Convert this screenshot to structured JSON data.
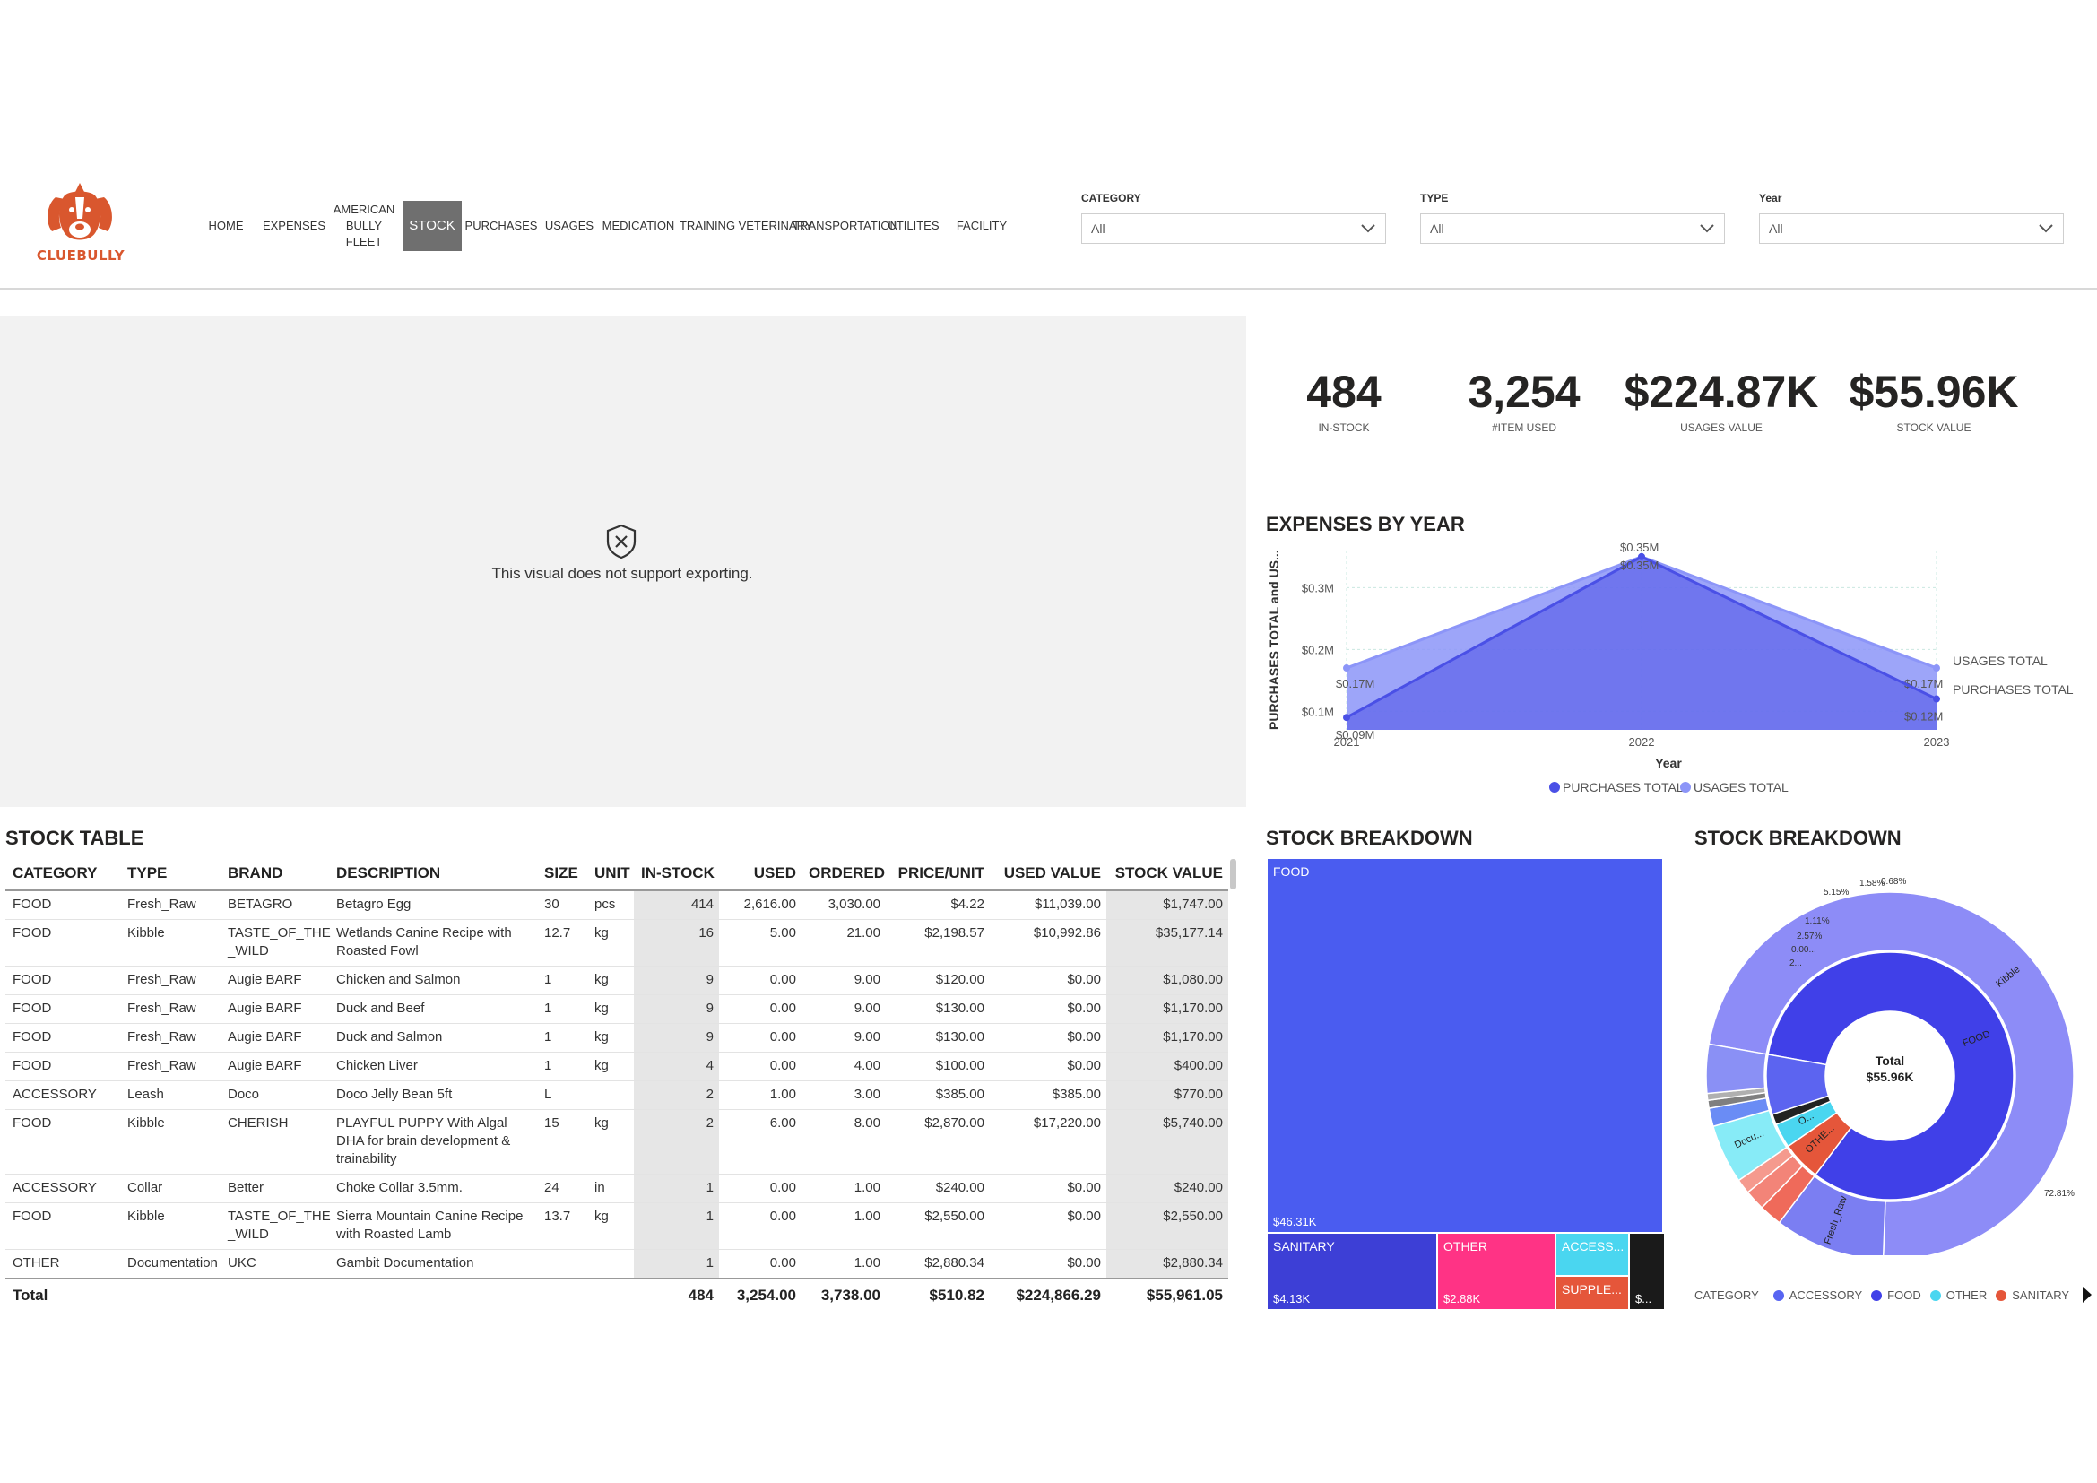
{
  "brand": {
    "logo_text": "CLUEBULLY"
  },
  "nav": [
    {
      "label": "HOME",
      "active": false
    },
    {
      "label": "EXPENSES",
      "active": false
    },
    {
      "label": "AMERICAN BULLY FLEET",
      "active": false
    },
    {
      "label": "STOCK",
      "active": true
    },
    {
      "label": "PURCHASES",
      "active": false
    },
    {
      "label": "USAGES",
      "active": false
    },
    {
      "label": "MEDICATION",
      "active": false
    },
    {
      "label": "TRAINING",
      "active": false
    },
    {
      "label": "VETERINARY",
      "active": false
    },
    {
      "label": "TRANSPORTATION",
      "active": false
    },
    {
      "label": "UTILITES",
      "active": false
    },
    {
      "label": "FACILITY",
      "active": false
    }
  ],
  "slicers": [
    {
      "label": "CATEGORY",
      "value": "All"
    },
    {
      "label": "TYPE",
      "value": "All"
    },
    {
      "label": "Year",
      "value": "All"
    }
  ],
  "placeholder": {
    "message": "This visual does not support exporting."
  },
  "kpis": [
    {
      "value": "484",
      "label": "IN-STOCK"
    },
    {
      "value": "3,254",
      "label": "#ITEM USED"
    },
    {
      "value": "$224.87K",
      "label": "USAGES VALUE"
    },
    {
      "value": "$55.96K",
      "label": "STOCK VALUE"
    }
  ],
  "expenses_chart": {
    "title": "EXPENSES BY YEAR",
    "chart_data": {
      "type": "area",
      "x": [
        "2021",
        "2022",
        "2023"
      ],
      "xlabel": "Year",
      "ylabel": "PURCHASES TOTAL and US...",
      "ylim": [
        0.07,
        0.36
      ],
      "yticks": [
        "$0.1M",
        "$0.2M",
        "$0.3M"
      ],
      "series": [
        {
          "name": "USAGES TOTAL",
          "values": [
            0.17,
            0.35,
            0.17
          ],
          "labels": [
            "$0.17M",
            "$0.35M",
            "$0.17M"
          ],
          "color": "#8c95f8"
        },
        {
          "name": "PURCHASES TOTAL",
          "values": [
            0.09,
            0.35,
            0.12
          ],
          "labels": [
            "$0.09M",
            "$0.35M",
            "$0.12M"
          ],
          "color": "#4a50e6"
        }
      ],
      "legend": [
        "PURCHASES TOTAL",
        "USAGES TOTAL"
      ],
      "legend_position": "bottom",
      "end_labels": [
        "USAGES TOTAL",
        "PURCHASES TOTAL"
      ]
    }
  },
  "stock_table": {
    "title": "STOCK TABLE",
    "columns": [
      "CATEGORY",
      "TYPE",
      "BRAND",
      "DESCRIPTION",
      "SIZE",
      "UNIT",
      "IN-STOCK",
      "USED",
      "ORDERED",
      "PRICE/UNIT",
      "USED VALUE",
      "STOCK VALUE"
    ],
    "rows": [
      [
        "FOOD",
        "Fresh_Raw",
        "BETAGRO",
        "Betagro Egg",
        "30",
        "pcs",
        "414",
        "2,616.00",
        "3,030.00",
        "$4.22",
        "$11,039.00",
        "$1,747.00"
      ],
      [
        "FOOD",
        "Kibble",
        "TASTE_OF_THE _WILD",
        "Wetlands Canine Recipe with Roasted Fowl",
        "12.7",
        "kg",
        "16",
        "5.00",
        "21.00",
        "$2,198.57",
        "$10,992.86",
        "$35,177.14"
      ],
      [
        "FOOD",
        "Fresh_Raw",
        "Augie BARF",
        "Chicken and Salmon",
        "1",
        "kg",
        "9",
        "0.00",
        "9.00",
        "$120.00",
        "$0.00",
        "$1,080.00"
      ],
      [
        "FOOD",
        "Fresh_Raw",
        "Augie BARF",
        "Duck and Beef",
        "1",
        "kg",
        "9",
        "0.00",
        "9.00",
        "$130.00",
        "$0.00",
        "$1,170.00"
      ],
      [
        "FOOD",
        "Fresh_Raw",
        "Augie BARF",
        "Duck and Salmon",
        "1",
        "kg",
        "9",
        "0.00",
        "9.00",
        "$130.00",
        "$0.00",
        "$1,170.00"
      ],
      [
        "FOOD",
        "Fresh_Raw",
        "Augie BARF",
        "Chicken Liver",
        "1",
        "kg",
        "4",
        "0.00",
        "4.00",
        "$100.00",
        "$0.00",
        "$400.00"
      ],
      [
        "ACCESSORY",
        "Leash",
        "Doco",
        "Doco Jelly Bean 5ft",
        "L",
        "",
        "2",
        "1.00",
        "3.00",
        "$385.00",
        "$385.00",
        "$770.00"
      ],
      [
        "FOOD",
        "Kibble",
        "CHERISH",
        "PLAYFUL PUPPY With Algal DHA for brain development & trainability",
        "15",
        "kg",
        "2",
        "6.00",
        "8.00",
        "$2,870.00",
        "$17,220.00",
        "$5,740.00"
      ],
      [
        "ACCESSORY",
        "Collar",
        "Better",
        "Choke Collar 3.5mm.",
        "24",
        "in",
        "1",
        "0.00",
        "1.00",
        "$240.00",
        "$0.00",
        "$240.00"
      ],
      [
        "FOOD",
        "Kibble",
        "TASTE_OF_THE _WILD",
        "Sierra Mountain Canine Recipe with Roasted Lamb",
        "13.7",
        "kg",
        "1",
        "0.00",
        "1.00",
        "$2,550.00",
        "$0.00",
        "$2,550.00"
      ],
      [
        "OTHER",
        "Documentation",
        "UKC",
        "Gambit Documentation",
        "",
        "",
        "1",
        "0.00",
        "1.00",
        "$2,880.34",
        "$0.00",
        "$2,880.34"
      ]
    ],
    "total": [
      "Total",
      "",
      "",
      "",
      "",
      "",
      "484",
      "3,254.00",
      "3,738.00",
      "$510.82",
      "$224,866.29",
      "$55,961.05"
    ]
  },
  "treemap": {
    "title": "STOCK BREAKDOWN",
    "chart_data": {
      "type": "treemap",
      "items": [
        {
          "name": "FOOD",
          "value": "$46.31K",
          "color": "#4a5cf0"
        },
        {
          "name": "SANITARY",
          "value": "$4.13K",
          "color": "#3d3fd6"
        },
        {
          "name": "OTHER",
          "value": "$2.88K",
          "color": "#ff3385"
        },
        {
          "name": "ACCESS...",
          "value": "",
          "color": "#4ad6f0"
        },
        {
          "name": "SUPPLE...",
          "value": "",
          "color": "#e5563a"
        },
        {
          "name": "",
          "value": "$...",
          "color": "#1a1a1a"
        }
      ]
    }
  },
  "sunburst": {
    "title": "STOCK BREAKDOWN",
    "center_label": "Total",
    "center_value": "$55.96K",
    "chart_data": {
      "type": "pie",
      "inner": [
        {
          "name": "FOOD",
          "label": "FOOD",
          "value": 82.5,
          "color": "#4040e8"
        },
        {
          "name": "OTHER",
          "label": "OTHE...",
          "value": 5.1,
          "color": "#e5563a"
        },
        {
          "name": "ACCESSORY",
          "label": "O...",
          "value": 3.2,
          "color": "#4ad6f0"
        },
        {
          "name": "dark",
          "label": "",
          "value": 1.4,
          "color": "#222222"
        },
        {
          "name": "SANITARY",
          "label": "",
          "value": 7.8,
          "color": "#5c64f0"
        }
      ],
      "outer": [
        {
          "label": "Kibble",
          "value": 72.8,
          "color": "#8d8cf7"
        },
        {
          "label": "Fresh_Raw",
          "value": 9.7,
          "color": "#7b7ef2"
        },
        {
          "label": "",
          "value": 2.0,
          "color": "#ef6a5a"
        },
        {
          "label": "",
          "value": 1.8,
          "color": "#f38478"
        },
        {
          "label": "",
          "value": 1.3,
          "color": "#f59a8e"
        },
        {
          "label": "Docu...",
          "value": 5.2,
          "color": "#87ebf7"
        },
        {
          "label": "",
          "value": 1.6,
          "color": "#6a8cf5"
        },
        {
          "label": "",
          "value": 0.7,
          "color": "#7f7f7f"
        },
        {
          "label": "",
          "value": 0.6,
          "color": "#b0b0b0"
        },
        {
          "label": "",
          "value": 4.3,
          "color": "#8a90f5"
        }
      ],
      "pct_labels": [
        "72.81%",
        "5.15%",
        "1.58%",
        "0.68%",
        "1.11%",
        "2.57%",
        "0.00...",
        "2..."
      ],
      "legend_title": "CATEGORY",
      "legend": [
        {
          "name": "ACCESSORY",
          "color": "#5865f2"
        },
        {
          "name": "FOOD",
          "color": "#4040e8"
        },
        {
          "name": "OTHER",
          "color": "#4ad6f0"
        },
        {
          "name": "SANITARY",
          "color": "#e5563a"
        }
      ]
    }
  }
}
